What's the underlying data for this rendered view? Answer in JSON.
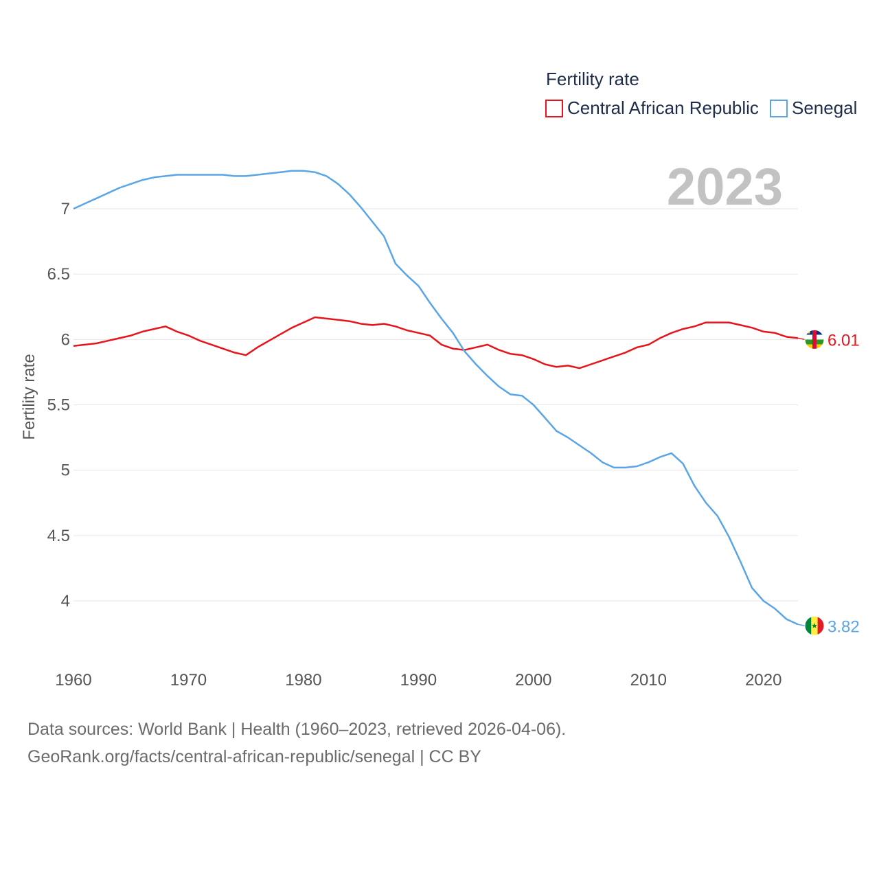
{
  "chart_data": {
    "type": "line",
    "title": "Fertility rate",
    "ylabel": "Fertility rate",
    "xlabel": "",
    "year_display": "2023",
    "xlim": [
      1960,
      2023
    ],
    "ylim": [
      3.7,
      7.4
    ],
    "x_ticks": [
      1960,
      1970,
      1980,
      1990,
      2000,
      2010,
      2020
    ],
    "y_ticks": [
      4,
      4.5,
      5,
      5.5,
      6,
      6.5,
      7
    ],
    "y_tick_labels": [
      "4",
      "4.5",
      "5",
      "5.5",
      "6",
      "6.5",
      "7"
    ],
    "x": [
      1960,
      1961,
      1962,
      1963,
      1964,
      1965,
      1966,
      1967,
      1968,
      1969,
      1970,
      1971,
      1972,
      1973,
      1974,
      1975,
      1976,
      1977,
      1978,
      1979,
      1980,
      1981,
      1982,
      1983,
      1984,
      1985,
      1986,
      1987,
      1988,
      1989,
      1990,
      1991,
      1992,
      1993,
      1994,
      1995,
      1996,
      1997,
      1998,
      1999,
      2000,
      2001,
      2002,
      2003,
      2004,
      2005,
      2006,
      2007,
      2008,
      2009,
      2010,
      2011,
      2012,
      2013,
      2014,
      2015,
      2016,
      2017,
      2018,
      2019,
      2020,
      2021,
      2022,
      2023
    ],
    "series": [
      {
        "name": "Central African Republic",
        "color": "#e8141b",
        "end_label": "6.01",
        "flag": "central-african-republic",
        "values": [
          5.95,
          5.96,
          5.97,
          5.99,
          6.01,
          6.03,
          6.06,
          6.08,
          6.1,
          6.06,
          6.03,
          5.99,
          5.96,
          5.93,
          5.9,
          5.88,
          5.94,
          5.99,
          6.04,
          6.09,
          6.13,
          6.17,
          6.16,
          6.15,
          6.14,
          6.12,
          6.11,
          6.12,
          6.1,
          6.07,
          6.05,
          6.03,
          5.96,
          5.93,
          5.92,
          5.94,
          5.96,
          5.92,
          5.89,
          5.88,
          5.85,
          5.81,
          5.79,
          5.8,
          5.78,
          5.81,
          5.84,
          5.87,
          5.9,
          5.94,
          5.96,
          6.01,
          6.05,
          6.08,
          6.1,
          6.13,
          6.13,
          6.13,
          6.11,
          6.09,
          6.06,
          6.05,
          6.02,
          6.01
        ]
      },
      {
        "name": "Senegal",
        "color": "#5aa5e6",
        "end_label": "3.82",
        "flag": "senegal",
        "values": [
          7.0,
          7.04,
          7.08,
          7.12,
          7.16,
          7.19,
          7.22,
          7.24,
          7.25,
          7.26,
          7.26,
          7.26,
          7.26,
          7.26,
          7.25,
          7.25,
          7.26,
          7.27,
          7.28,
          7.29,
          7.29,
          7.28,
          7.25,
          7.19,
          7.11,
          7.01,
          6.9,
          6.79,
          6.58,
          6.49,
          6.41,
          6.28,
          6.16,
          6.05,
          5.91,
          5.81,
          5.72,
          5.64,
          5.58,
          5.57,
          5.5,
          5.4,
          5.3,
          5.25,
          5.19,
          5.13,
          5.06,
          5.02,
          5.02,
          5.03,
          5.06,
          5.1,
          5.13,
          5.05,
          4.88,
          4.75,
          4.65,
          4.49,
          4.3,
          4.1,
          4.0,
          3.94,
          3.86,
          3.82
        ]
      }
    ]
  },
  "legend": {
    "title": "Fertility rate",
    "items": [
      "Central African Republic",
      "Senegal"
    ]
  },
  "footer": {
    "line1": "Data sources: World Bank | Health (1960–2023, retrieved 2026-04-06).",
    "line2": "GeoRank.org/facts/central-african-republic/senegal | CC BY"
  }
}
